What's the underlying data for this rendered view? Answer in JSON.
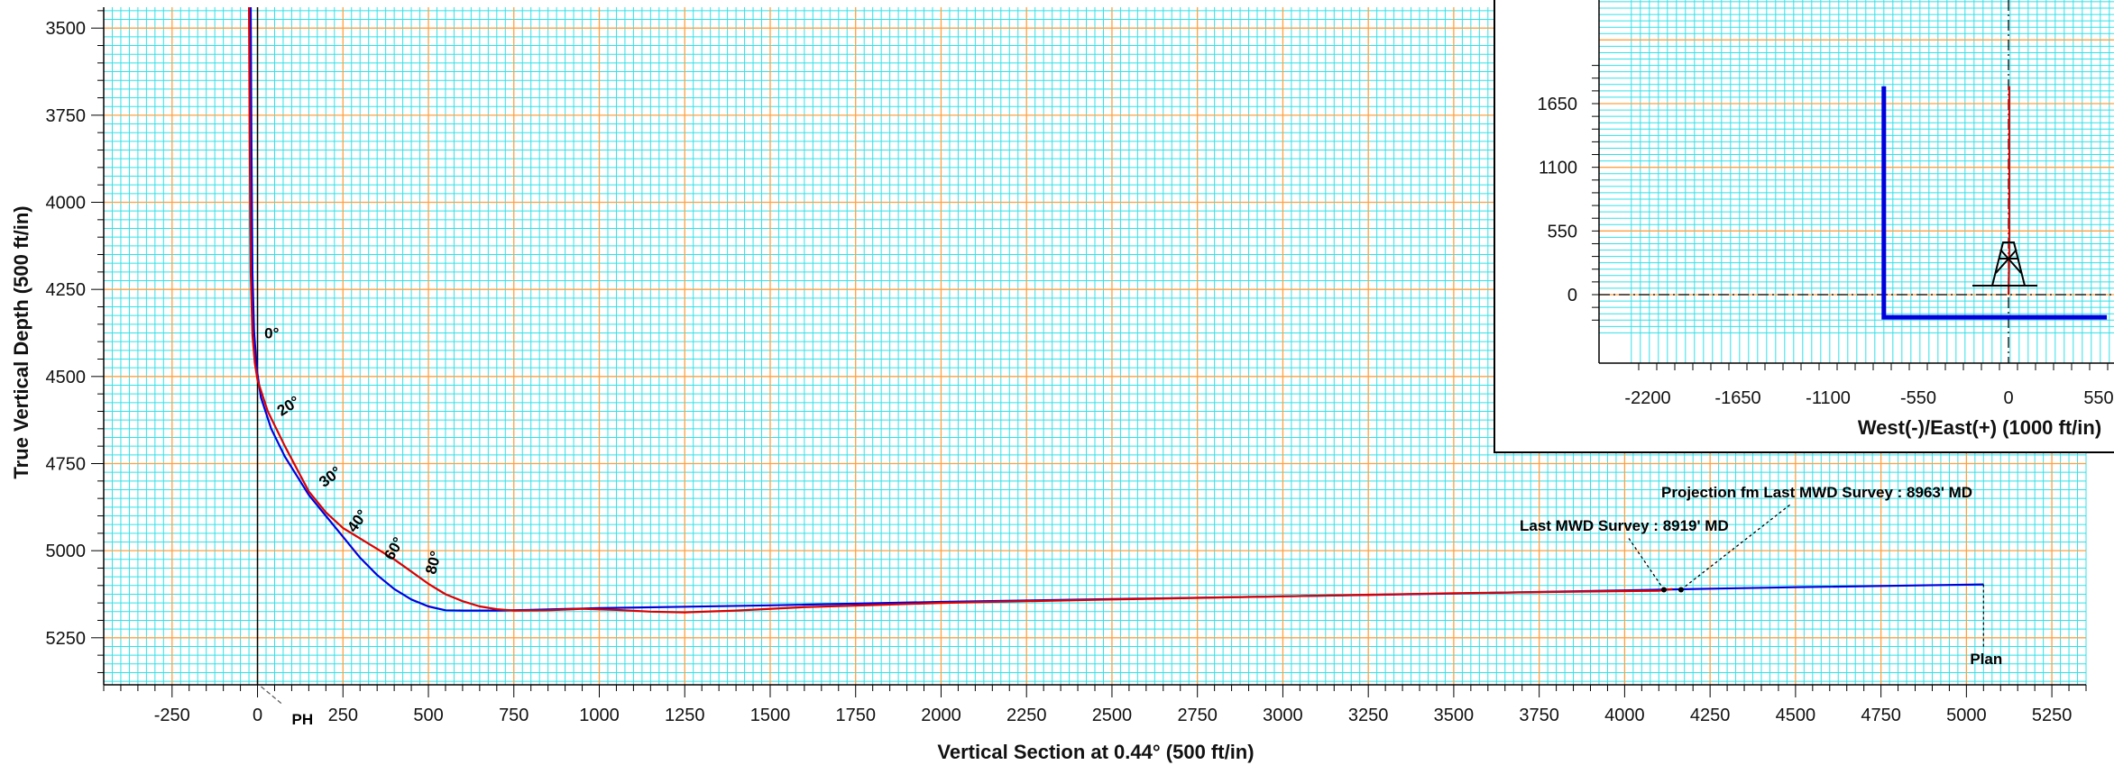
{
  "chart_data": [
    {
      "type": "line",
      "title": "",
      "xlabel": "Vertical Section at 0.44° (500 ft/in)",
      "ylabel": "True Vertical Depth (500 ft/in)",
      "xlim": [
        -450,
        5350
      ],
      "ylim": [
        5385,
        3440
      ],
      "y_inverted": true,
      "x_ticks": [
        -250,
        0,
        250,
        500,
        750,
        1000,
        1250,
        1500,
        1750,
        2000,
        2250,
        2500,
        2750,
        3000,
        3250,
        3500,
        3750,
        4000,
        4250,
        4500,
        4750,
        5000,
        5250
      ],
      "y_ticks": [
        3500,
        3750,
        4000,
        4250,
        4500,
        4750,
        5000,
        5250
      ],
      "grid": true,
      "grid_colors": {
        "minor": "#33e0e8",
        "major": "#ffa040"
      },
      "series": [
        {
          "name": "Plan",
          "color": "#0000dd",
          "x": [
            -20,
            -18,
            -15,
            -10,
            -2,
            10,
            40,
            80,
            150,
            200,
            250,
            300,
            350,
            400,
            450,
            500,
            550,
            600,
            700,
            800,
            1000,
            1500,
            2000,
            2500,
            3000,
            3500,
            4000,
            4140,
            4500,
            5050
          ],
          "y": [
            3440,
            3800,
            4200,
            4370,
            4480,
            4560,
            4650,
            4730,
            4840,
            4900,
            4960,
            5020,
            5070,
            5110,
            5140,
            5160,
            5171,
            5172,
            5172,
            5170,
            5165,
            5157,
            5147,
            5139,
            5131,
            5123,
            5114,
            5111,
            5105,
            5097
          ]
        },
        {
          "name": "",
          "color": "#dd0000",
          "x": [
            -25,
            -23,
            -20,
            -15,
            -8,
            0,
            30,
            80,
            150,
            200,
            250,
            300,
            350,
            400,
            450,
            500,
            550,
            600,
            650,
            700,
            750,
            850,
            950,
            1050,
            1150,
            1250,
            1400,
            1600,
            1800,
            2000,
            2500,
            3000,
            3500,
            4000,
            4100,
            4140
          ],
          "y": [
            3440,
            3800,
            4200,
            4380,
            4460,
            4510,
            4600,
            4700,
            4830,
            4890,
            4935,
            4965,
            4995,
            5025,
            5060,
            5095,
            5125,
            5145,
            5160,
            5168,
            5172,
            5171,
            5167,
            5170,
            5175,
            5177,
            5172,
            5162,
            5156,
            5150,
            5140,
            5131,
            5122,
            5116,
            5115,
            5110
          ]
        }
      ],
      "annotations": [
        {
          "text": "0°",
          "x": 20,
          "y": 4390
        },
        {
          "text": "20°",
          "x": 70,
          "y": 4615
        },
        {
          "text": "30°",
          "x": 195,
          "y": 4820
        },
        {
          "text": "40°",
          "x": 285,
          "y": 4950
        },
        {
          "text": "60°",
          "x": 395,
          "y": 5030
        },
        {
          "text": "80°",
          "x": 520,
          "y": 5070
        },
        {
          "text": "PH",
          "x": 140,
          "y": 5360
        },
        {
          "text": "Last MWD Survey : 8919' MD",
          "x": 4115,
          "y": 5112
        },
        {
          "text": "Projection fm Last MWD Survey : 8963' MD",
          "x": 4165,
          "y": 5112
        },
        {
          "text": "Plan",
          "x": 5050,
          "y": 5330
        }
      ]
    },
    {
      "type": "line",
      "title": "",
      "xlabel": "West(-)/East(+) (1000 ft/in)",
      "ylabel": "",
      "x_ticks": [
        -2200,
        -1650,
        -1100,
        -550,
        0,
        550
      ],
      "y_ticks": [
        0,
        550,
        1100,
        1650
      ],
      "grid": true,
      "series": [
        {
          "name": "",
          "color": "#0000dd",
          "x": [
            -760,
            -760,
            600
          ],
          "y": [
            1800,
            -195,
            -195
          ]
        },
        {
          "name": "",
          "color": "#dd0000",
          "x": [
            0,
            5,
            5
          ],
          "y": [
            0,
            400,
            1800
          ]
        }
      ]
    }
  ]
}
